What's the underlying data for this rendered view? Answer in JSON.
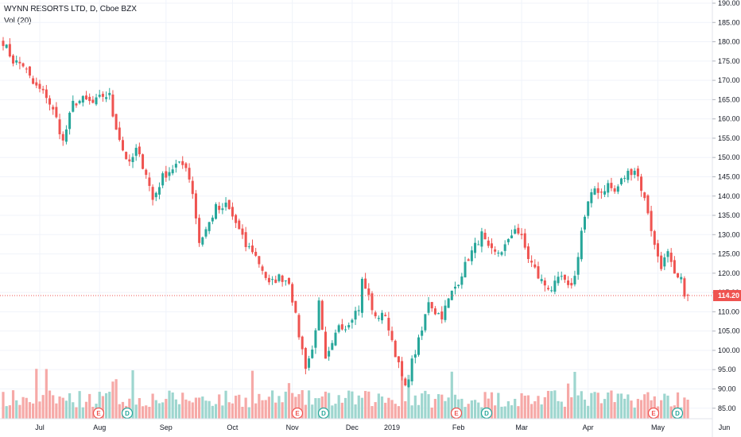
{
  "legend": {
    "symbol": "WYNN RESORTS LTD, D, Cboe BZX",
    "volume": "Vol (20)"
  },
  "colors": {
    "up": "#26a69a",
    "down": "#ef5350",
    "vol_up": "#9ed6cf",
    "vol_down": "#f6a9a7",
    "grid": "#f0f3fa",
    "price_line": "#ef5350"
  },
  "chart_data": {
    "type": "candlestick",
    "y_axis": {
      "min": 82,
      "max": 190,
      "ticks": [
        "85.00",
        "90.00",
        "95.00",
        "100.00",
        "105.00",
        "110.00",
        "115.00",
        "120.00",
        "125.00",
        "130.00",
        "135.00",
        "140.00",
        "145.00",
        "150.00",
        "155.00",
        "160.00",
        "165.00",
        "170.00",
        "175.00",
        "180.00",
        "185.00",
        "190.00"
      ]
    },
    "x_axis": {
      "labels": [
        "Jul",
        "Aug",
        "Sep",
        "Oct",
        "Nov",
        "Dec",
        "2019",
        "Feb",
        "Mar",
        "Apr",
        "May",
        "Jun"
      ]
    },
    "last_price": {
      "value": 114.2,
      "label": "114.20"
    },
    "events": [
      {
        "type": "earnings",
        "label": "E"
      },
      {
        "type": "dividend",
        "label": "D"
      },
      {
        "type": "earnings",
        "label": "E"
      },
      {
        "type": "dividend",
        "label": "D"
      },
      {
        "type": "earnings",
        "label": "E"
      },
      {
        "type": "dividend",
        "label": "D"
      },
      {
        "type": "earnings",
        "label": "E"
      },
      {
        "type": "dividend",
        "label": "D"
      }
    ],
    "anchors": [
      [
        0,
        180
      ],
      [
        3,
        175
      ],
      [
        6,
        174
      ],
      [
        9,
        169
      ],
      [
        13,
        166
      ],
      [
        16,
        160
      ],
      [
        18,
        154
      ],
      [
        21,
        164
      ],
      [
        24,
        165
      ],
      [
        27,
        164
      ],
      [
        30,
        166
      ],
      [
        32,
        166
      ],
      [
        33,
        161
      ],
      [
        36,
        152
      ],
      [
        38,
        148
      ],
      [
        40,
        152
      ],
      [
        43,
        146
      ],
      [
        45,
        139
      ],
      [
        48,
        145
      ],
      [
        52,
        148
      ],
      [
        55,
        148
      ],
      [
        57,
        141
      ],
      [
        59,
        128
      ],
      [
        62,
        133
      ],
      [
        64,
        137
      ],
      [
        66,
        136
      ],
      [
        67,
        138
      ],
      [
        70,
        133
      ],
      [
        73,
        127
      ],
      [
        75,
        126
      ],
      [
        78,
        121
      ],
      [
        80,
        117
      ],
      [
        83,
        119
      ],
      [
        86,
        118
      ],
      [
        89,
        104
      ],
      [
        91,
        96
      ],
      [
        93,
        100
      ],
      [
        95,
        112
      ],
      [
        97,
        97
      ],
      [
        99,
        101
      ],
      [
        101,
        107
      ],
      [
        103,
        106
      ],
      [
        105,
        109
      ],
      [
        107,
        111
      ],
      [
        108,
        118
      ],
      [
        110,
        114
      ],
      [
        112,
        108
      ],
      [
        114,
        110
      ],
      [
        116,
        106
      ],
      [
        119,
        96
      ],
      [
        121,
        90
      ],
      [
        123,
        97
      ],
      [
        126,
        105
      ],
      [
        128,
        113
      ],
      [
        130,
        110
      ],
      [
        132,
        109
      ],
      [
        135,
        115
      ],
      [
        137,
        118
      ],
      [
        138,
        120
      ],
      [
        140,
        124
      ],
      [
        142,
        127
      ],
      [
        144,
        130
      ],
      [
        146,
        126
      ],
      [
        148,
        125
      ],
      [
        150,
        126
      ],
      [
        152,
        128
      ],
      [
        154,
        132
      ],
      [
        156,
        129
      ],
      [
        158,
        124
      ],
      [
        160,
        121
      ],
      [
        161,
        119
      ],
      [
        163,
        117
      ],
      [
        165,
        116
      ],
      [
        166,
        117
      ],
      [
        168,
        119
      ],
      [
        170,
        116
      ],
      [
        172,
        119
      ],
      [
        174,
        131
      ],
      [
        176,
        138
      ],
      [
        178,
        142
      ],
      [
        180,
        141
      ],
      [
        182,
        143
      ],
      [
        184,
        141
      ],
      [
        186,
        144
      ],
      [
        188,
        146
      ],
      [
        190,
        147
      ],
      [
        191,
        145
      ],
      [
        192,
        142
      ],
      [
        194,
        136
      ],
      [
        196,
        127
      ],
      [
        198,
        122
      ],
      [
        200,
        125
      ],
      [
        202,
        119
      ],
      [
        204,
        118
      ],
      [
        205,
        115
      ],
      [
        206,
        114.2
      ]
    ]
  }
}
